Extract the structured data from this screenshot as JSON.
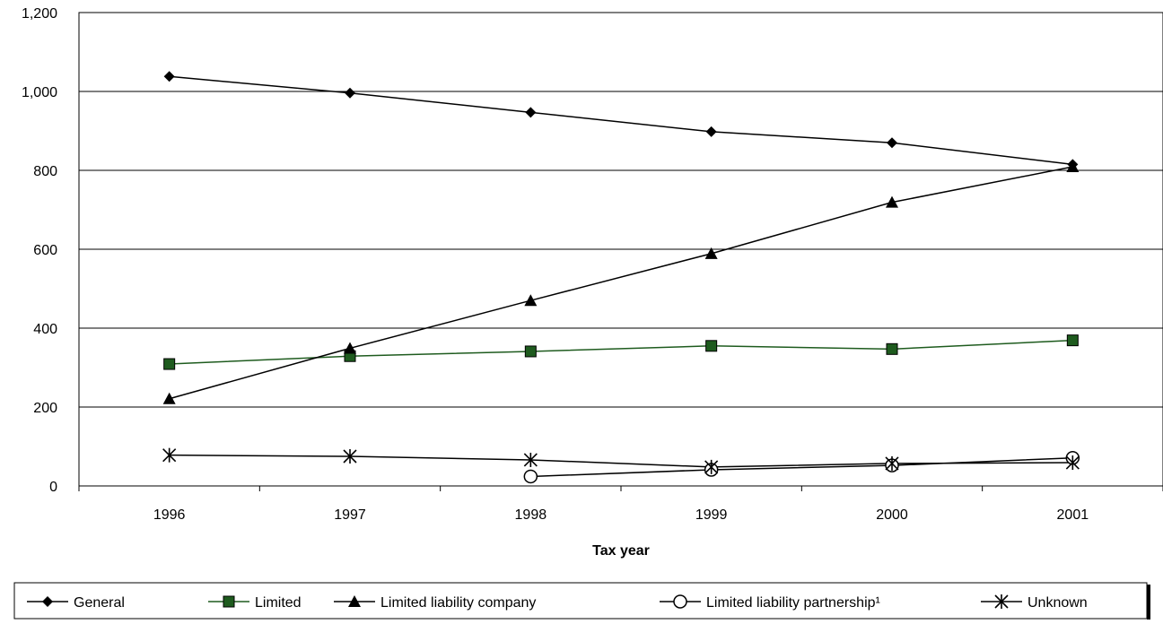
{
  "chart_data": {
    "type": "line",
    "title": "",
    "xlabel": "Tax year",
    "ylabel": "",
    "categories": [
      "1996",
      "1997",
      "1998",
      "1999",
      "2000",
      "2001"
    ],
    "ylim": [
      0,
      1200
    ],
    "yticks": [
      0,
      200,
      400,
      600,
      800,
      1000,
      1200
    ],
    "ytick_labels": [
      "0",
      "200",
      "400",
      "600",
      "800",
      "1,000",
      "1,200"
    ],
    "grid": "horizontal",
    "legend_position": "bottom",
    "series": [
      {
        "name": "General",
        "color": "#000000",
        "marker": "diamond",
        "values": [
          1038,
          996,
          947,
          898,
          870,
          815
        ]
      },
      {
        "name": "Limited",
        "color": "#1e5b1e",
        "marker": "square",
        "values": [
          309,
          329,
          341,
          355,
          347,
          369
        ]
      },
      {
        "name": "Limited liability company",
        "color": "#000000",
        "marker": "triangle",
        "values": [
          221,
          349,
          470,
          589,
          719,
          809
        ]
      },
      {
        "name": "Limited liability partnership¹",
        "color": "#000000",
        "marker": "circle",
        "values": [
          null,
          null,
          24,
          41,
          52,
          71
        ]
      },
      {
        "name": "Unknown",
        "color": "#000000",
        "marker": "asterisk",
        "values": [
          78,
          75,
          66,
          48,
          57,
          59
        ]
      }
    ]
  }
}
